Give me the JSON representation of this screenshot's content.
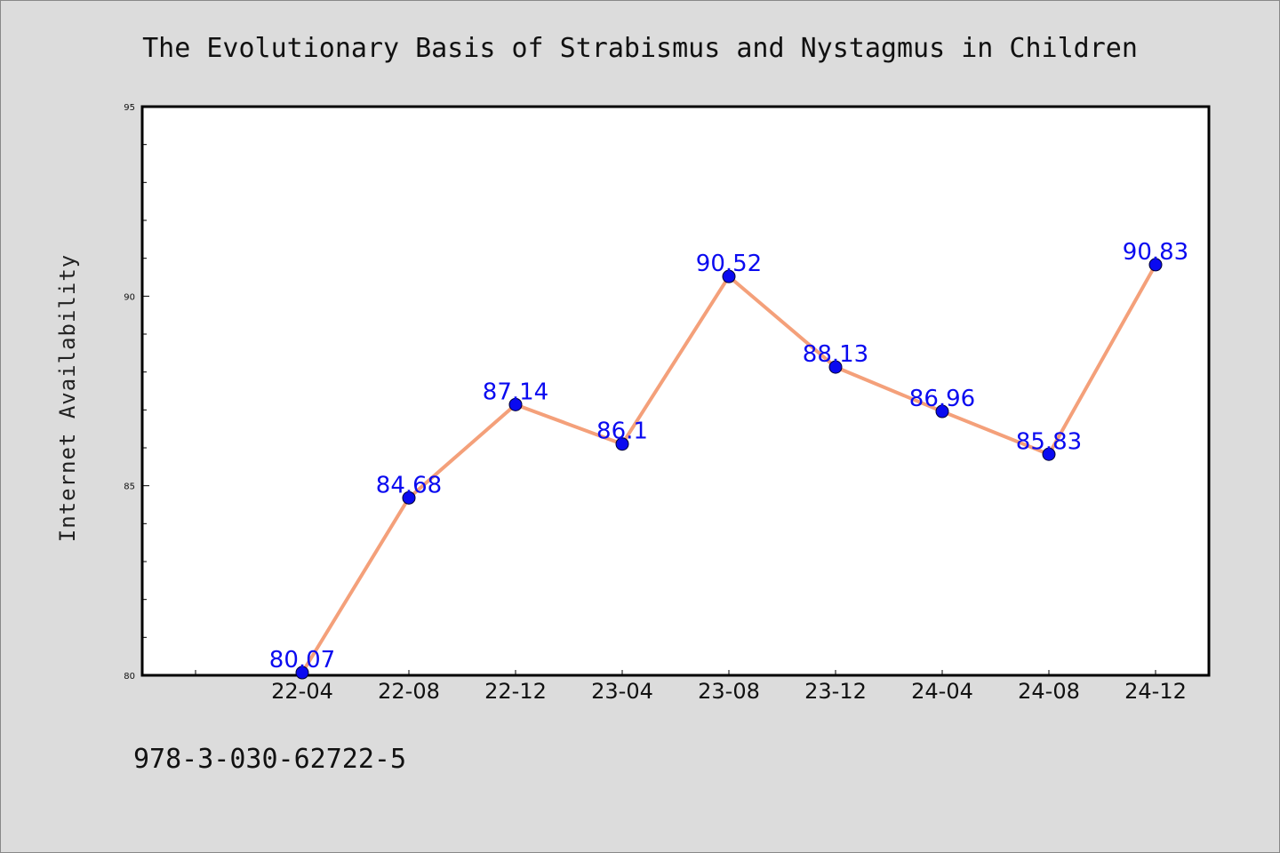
{
  "chart_data": {
    "type": "line",
    "title": "The Evolutionary Basis of Strabismus and Nystagmus in Children",
    "xlabel": "",
    "ylabel": "Internet Availability",
    "categories": [
      "22-04",
      "22-08",
      "22-12",
      "23-04",
      "23-08",
      "23-12",
      "24-04",
      "24-08",
      "24-12"
    ],
    "series": [
      {
        "values": [
          80.07,
          84.68,
          87.14,
          86.1,
          90.52,
          88.13,
          86.96,
          85.83,
          90.83
        ],
        "labels": [
          "80.07",
          "84.68",
          "87.14",
          "86.1",
          "90.52",
          "88.13",
          "86.96",
          "85.83",
          "90.83"
        ]
      }
    ],
    "ylim": [
      80,
      95
    ],
    "yticks": [
      "80",
      "85",
      "90",
      "95"
    ],
    "grid": false,
    "legend": "none",
    "colors": {
      "line": "#f4a07a",
      "marker": "#0a0af0",
      "data_label": "#0a0af0",
      "background": "#dcdcdc",
      "plot_background": "#ffffff"
    }
  },
  "footer": {
    "isbn": "978-3-030-62722-5"
  }
}
